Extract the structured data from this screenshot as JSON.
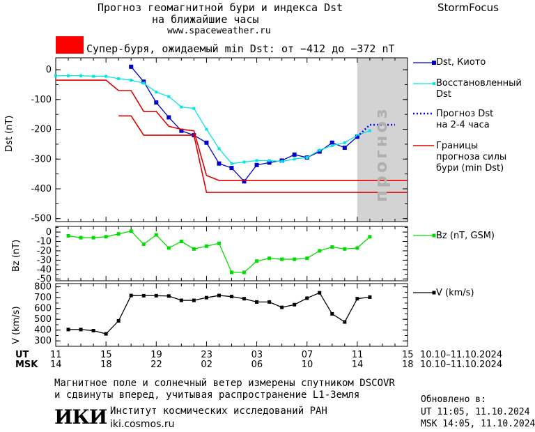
{
  "header": {
    "title_line1": "Прогноз геомагнитной бури и индекса Dst",
    "title_line2": "на ближайшие часы",
    "site": "www.spaceweather.ru",
    "brand": "StormFocus"
  },
  "alert": {
    "color": "#ff0000",
    "text": "Супер-буря, ожидаемый min Dst: от −412 до −372 nT"
  },
  "forecast_band_label": "прогноз",
  "legend": {
    "dst_kyoto": "Dst, Киото",
    "dst_restored_1": "Восстановленный",
    "dst_restored_2": "Dst",
    "forecast_1": "Прогноз Dst",
    "forecast_2": "на 2-4 часа",
    "bounds_1": "Границы",
    "bounds_2": "прогноза силы",
    "bounds_3": "бури (min Dst)",
    "bz": "Bz (nT, GSM)",
    "v": "V (km/s)"
  },
  "axes": {
    "ut_label": "UT",
    "msk_label": "MSK",
    "ut_ticks": [
      "11",
      "15",
      "19",
      "23",
      "03",
      "07",
      "11",
      "15"
    ],
    "msk_ticks": [
      "14",
      "18",
      "22",
      "02",
      "06",
      "10",
      "14",
      "18"
    ],
    "date_range_ut": "10.10–11.10.2024",
    "date_range_msk": "10.10–11.10.2024"
  },
  "footer": {
    "line1": "Магнитное поле и солнечный ветер измерены спутником DSCOVR",
    "line2": "и сдвинуты вперед, учитывая распространение L1-Земля",
    "updated_label": "Обновлено в:",
    "updated_ut": "UT  11:05, 11.10.2024",
    "updated_msk": "MSK 14:05, 11.10.2024",
    "logo": "ИКИ",
    "institute": "Институт космических исследований РАН",
    "institute_site": "iki.cosmos.ru"
  },
  "colors": {
    "dst": "#0000cc",
    "restored": "#00e5e5",
    "forecast": "#0000ff",
    "bounds": "#dd0000",
    "bz": "#00dd00",
    "v": "#000000",
    "band": "#d3d3d3"
  },
  "chart_data": [
    {
      "type": "line",
      "xlabel": "",
      "ylabel": "Dst (nT)",
      "x_unit": "hours since 10.10 11:00 UT",
      "xlim": [
        0,
        28
      ],
      "ylim": [
        -510,
        40
      ],
      "yticks": [
        0,
        -100,
        -200,
        -300,
        -400,
        -500
      ],
      "forecast_band_x": [
        24,
        28
      ],
      "series": [
        {
          "name": "Dst, Киото",
          "x": [
            6,
            7,
            8,
            9,
            10,
            11,
            12,
            13,
            14,
            15,
            16,
            17,
            18,
            19,
            20,
            21,
            22,
            23,
            24
          ],
          "y": [
            10,
            -40,
            -110,
            -160,
            -205,
            -220,
            -245,
            -315,
            -330,
            -375,
            -320,
            -312,
            -305,
            -285,
            -295,
            -275,
            -245,
            -262,
            -225
          ]
        },
        {
          "name": "Восстановленный Dst",
          "x": [
            0,
            1,
            2,
            3,
            4,
            5,
            6,
            7,
            8,
            9,
            10,
            11,
            12,
            13,
            14,
            15,
            16,
            17,
            18,
            19,
            20,
            21,
            22,
            23,
            24,
            25
          ],
          "y": [
            -20,
            -20,
            -20,
            -22,
            -22,
            -30,
            -35,
            -45,
            -75,
            -90,
            -125,
            -130,
            -200,
            -265,
            -315,
            -310,
            -305,
            -305,
            -308,
            -300,
            -295,
            -270,
            -255,
            -245,
            -220,
            -205
          ]
        },
        {
          "name": "Прогноз Dst на 2-4 часа",
          "x": [
            24,
            25,
            26,
            27
          ],
          "y": [
            -225,
            -185,
            -185,
            -185
          ]
        },
        {
          "name": "Границы прогноза силы бури (min Dst), верхняя",
          "x": [
            0,
            4,
            5,
            6,
            7,
            8,
            9,
            10,
            11,
            12,
            13,
            28
          ],
          "y": [
            -35,
            -35,
            -70,
            -70,
            -140,
            -140,
            -190,
            -200,
            -205,
            -355,
            -372,
            -372
          ]
        },
        {
          "name": "Границы прогноза силы бури (min Dst), нижняя",
          "x": [
            5,
            6,
            7,
            8,
            9,
            10,
            11,
            12,
            13,
            28
          ],
          "y": [
            -155,
            -155,
            -220,
            -220,
            -220,
            -220,
            -220,
            -412,
            -412,
            -412
          ]
        }
      ]
    },
    {
      "type": "line",
      "xlabel": "",
      "ylabel": "Bz (nT)",
      "xlim": [
        0,
        28
      ],
      "ylim": [
        -52,
        6
      ],
      "yticks": [
        0,
        -10,
        -20,
        -30,
        -40,
        -50
      ],
      "series": [
        {
          "name": "Bz (nT, GSM)",
          "x": [
            1,
            2,
            3,
            4,
            5,
            6,
            7,
            8,
            9,
            10,
            11,
            12,
            13,
            14,
            15,
            16,
            17,
            18,
            19,
            20,
            21,
            22,
            23,
            24,
            25
          ],
          "y": [
            -4,
            -6,
            -6,
            -5,
            -2,
            1,
            -13,
            -3,
            -17,
            -10,
            -18,
            -15,
            -12,
            -43,
            -43,
            -31,
            -28,
            -29,
            -29,
            -28,
            -20,
            -16,
            -18,
            -17,
            -5
          ]
        }
      ]
    },
    {
      "type": "line",
      "xlabel": "",
      "ylabel": "V (km/s)",
      "xlim": [
        0,
        28
      ],
      "ylim": [
        250,
        830
      ],
      "yticks": [
        300,
        400,
        500,
        600,
        700,
        800
      ],
      "series": [
        {
          "name": "V (km/s)",
          "x": [
            1,
            2,
            3,
            4,
            5,
            6,
            7,
            8,
            9,
            10,
            11,
            12,
            13,
            14,
            15,
            16,
            17,
            18,
            19,
            20,
            21,
            22,
            23,
            24,
            25
          ],
          "y": [
            405,
            405,
            395,
            365,
            485,
            720,
            718,
            718,
            715,
            675,
            675,
            700,
            720,
            710,
            690,
            660,
            660,
            610,
            635,
            695,
            745,
            550,
            475,
            690,
            705
          ]
        }
      ]
    }
  ]
}
